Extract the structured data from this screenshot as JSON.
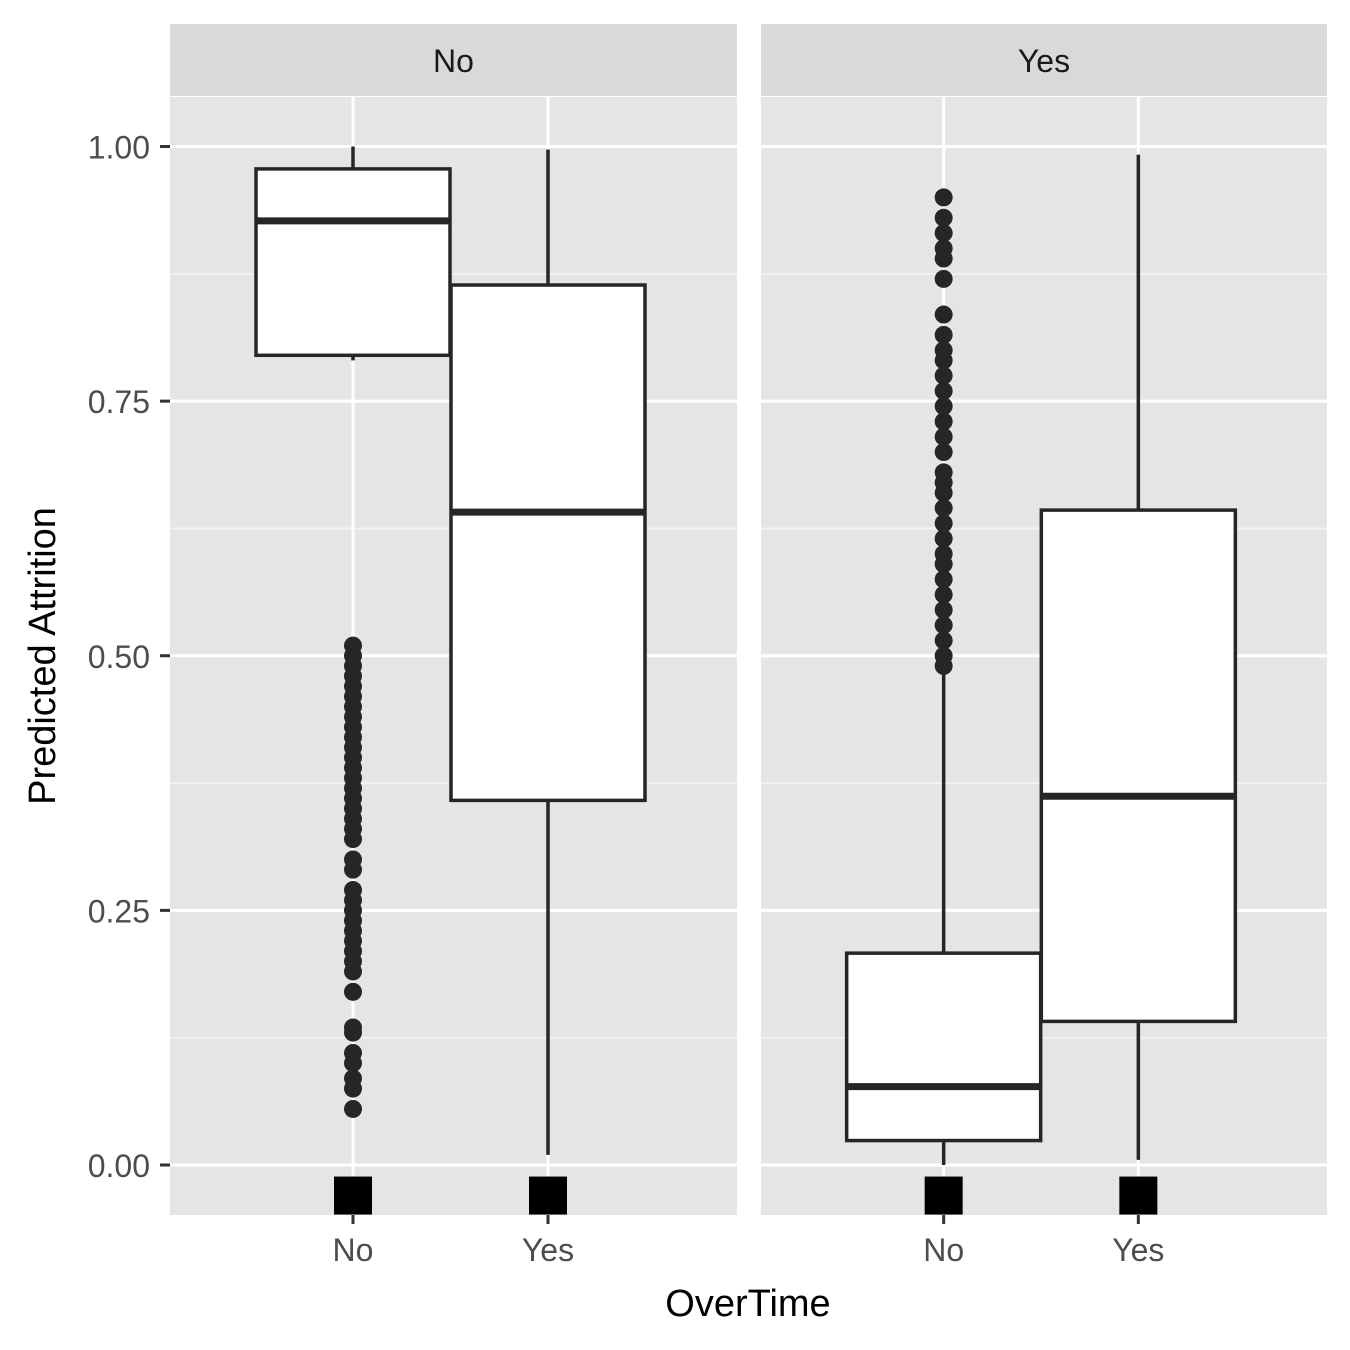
{
  "chart_data": {
    "type": "boxplot",
    "title": "",
    "xlabel": "OverTime",
    "ylabel": "Predicted Attrition",
    "ylim": [
      -0.09,
      1.11
    ],
    "y_ticks": [
      "0.00",
      "0.25",
      "0.50",
      "0.75",
      "1.00"
    ],
    "y_tick_values": [
      0,
      0.25,
      0.5,
      0.75,
      1.0
    ],
    "categories": [
      "No",
      "Yes"
    ],
    "grid": true,
    "panel_background": "#e5e5e5",
    "strip_background": "#d9d9d9",
    "box_fill": "#ffffff",
    "line_color": "#262626",
    "facets": [
      {
        "label": "No",
        "boxes": [
          {
            "category": "No",
            "whisker_low": 0.79,
            "q1": 0.795,
            "median": 0.927,
            "q3": 0.978,
            "whisker_high": 1.0,
            "outliers": [
              0.51,
              0.5,
              0.49,
              0.48,
              0.47,
              0.46,
              0.45,
              0.44,
              0.43,
              0.42,
              0.41,
              0.4,
              0.39,
              0.38,
              0.37,
              0.36,
              0.35,
              0.34,
              0.33,
              0.32,
              0.3,
              0.29,
              0.27,
              0.26,
              0.25,
              0.24,
              0.23,
              0.22,
              0.21,
              0.2,
              0.19,
              0.17,
              0.135,
              0.13,
              0.11,
              0.1,
              0.085,
              0.075,
              0.055
            ],
            "marker": -0.03
          },
          {
            "category": "Yes",
            "whisker_low": 0.01,
            "q1": 0.358,
            "median": 0.641,
            "q3": 0.864,
            "whisker_high": 0.997,
            "outliers": [],
            "marker": -0.03
          }
        ]
      },
      {
        "label": "Yes",
        "boxes": [
          {
            "category": "No",
            "whisker_low": 0.0,
            "q1": 0.024,
            "median": 0.077,
            "q3": 0.208,
            "whisker_high": 0.485,
            "outliers": [
              0.95,
              0.93,
              0.915,
              0.9,
              0.89,
              0.87,
              0.835,
              0.815,
              0.8,
              0.79,
              0.775,
              0.76,
              0.745,
              0.73,
              0.715,
              0.7,
              0.68,
              0.67,
              0.66,
              0.645,
              0.63,
              0.615,
              0.6,
              0.59,
              0.575,
              0.56,
              0.545,
              0.53,
              0.515,
              0.5,
              0.49
            ],
            "marker": -0.03
          },
          {
            "category": "Yes",
            "whisker_low": 0.005,
            "q1": 0.141,
            "median": 0.362,
            "q3": 0.643,
            "whisker_high": 0.992,
            "outliers": [],
            "marker": -0.03
          }
        ]
      }
    ]
  }
}
